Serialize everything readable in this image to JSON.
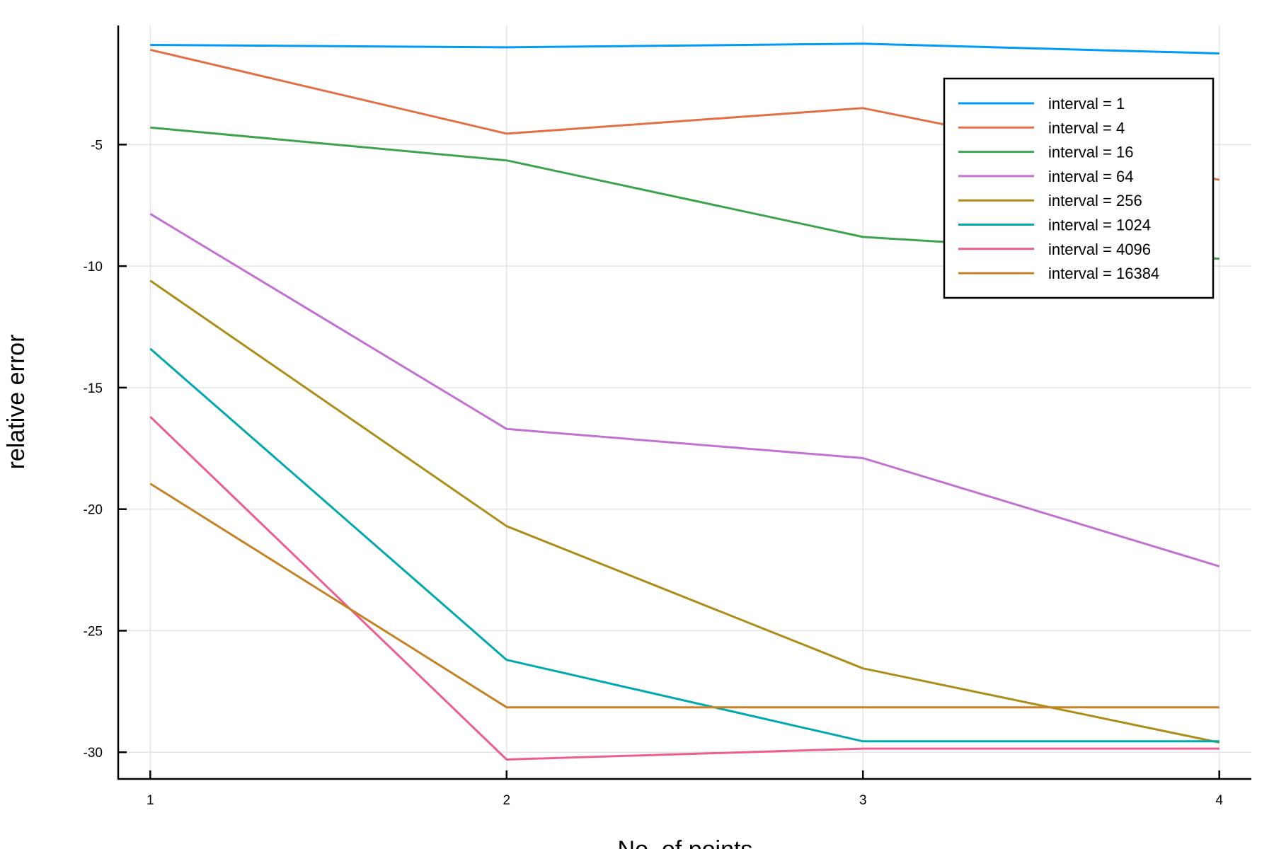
{
  "chart_data": {
    "type": "line",
    "title": "",
    "xlabel": "No. of points",
    "ylabel": "relative error",
    "x": [
      1,
      2,
      3,
      4
    ],
    "xticks": [
      "1",
      "2",
      "3",
      "4"
    ],
    "yticks": [
      "-5",
      "-10",
      "-15",
      "-20",
      "-25",
      "-30"
    ],
    "ytick_values": [
      -5,
      -10,
      -15,
      -20,
      -25,
      -30
    ],
    "xlim": [
      0.91,
      4.09
    ],
    "ylim": [
      -31.1,
      -0.1
    ],
    "grid": true,
    "legend_position": "top-right",
    "series": [
      {
        "name": "interval = 1",
        "color": "#009af9",
        "values": [
          -0.9,
          -1.0,
          -0.85,
          -1.25
        ]
      },
      {
        "name": "interval = 4",
        "color": "#e26f46",
        "values": [
          -1.1,
          -4.55,
          -3.5,
          -6.45
        ]
      },
      {
        "name": "interval = 16",
        "color": "#3da44d",
        "values": [
          -4.3,
          -5.65,
          -8.8,
          -9.7
        ]
      },
      {
        "name": "interval = 64",
        "color": "#c271d2",
        "values": [
          -7.85,
          -16.7,
          -17.9,
          -22.35
        ]
      },
      {
        "name": "interval = 256",
        "color": "#ac8d18",
        "values": [
          -10.6,
          -20.7,
          -26.55,
          -29.6
        ]
      },
      {
        "name": "interval = 1024",
        "color": "#00a9ad",
        "values": [
          -13.4,
          -26.2,
          -29.55,
          -29.55
        ]
      },
      {
        "name": "interval = 4096",
        "color": "#ed5d92",
        "values": [
          -16.2,
          -30.3,
          -29.85,
          -29.85
        ]
      },
      {
        "name": "interval = 16384",
        "color": "#c68125",
        "values": [
          -18.95,
          -28.15,
          -28.15,
          -28.15
        ]
      }
    ]
  }
}
